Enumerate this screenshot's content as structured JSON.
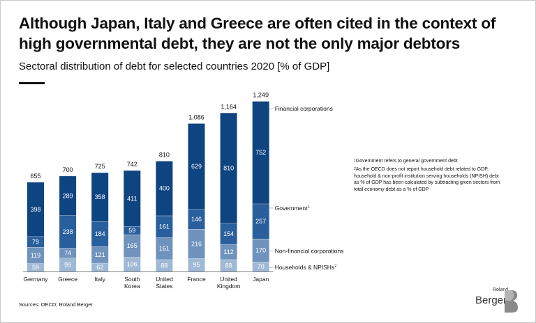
{
  "title": "Although Japan, Italy and Greece are often cited in the context of high governmental debt, they are not the only major debtors",
  "subtitle": "Sectoral distribution of debt for selected countries 2020 [% of GDP]",
  "footnotes": {
    "note1": "Government refers to general government debt",
    "note2": "As the OECD does not report household debt related to GDP, household & non-profit institution serving households (NPISH) debt as % of GDP has been calculated by subtracting given sectors from total economy debt as a % of GDP",
    "mark1": "1",
    "mark2": "2"
  },
  "source": "Sources: OECD; Roland Berger",
  "logo": {
    "line1": "Roland",
    "line2": "Berger"
  },
  "chart_data": {
    "type": "bar",
    "stacked": true,
    "unit": "% of GDP",
    "categories": [
      "Germany",
      "Greece",
      "Italy",
      "South\nKorea",
      "United\nStates",
      "France",
      "United\nKingdom",
      "Japan"
    ],
    "totals": [
      "655",
      "700",
      "725",
      "742",
      "810",
      "1,086",
      "1,164",
      "1,249"
    ],
    "series": [
      {
        "name": "Households & NPISHs",
        "mark": "2",
        "color": "#9fb9d5",
        "values": [
          59,
          99,
          62,
          106,
          88,
          95,
          88,
          70
        ]
      },
      {
        "name": "Non-financial corporations",
        "mark": "",
        "color": "#6f93bd",
        "values": [
          119,
          74,
          121,
          165,
          161,
          216,
          112,
          170
        ]
      },
      {
        "name": "Government",
        "mark": "1",
        "color": "#2a5f9d",
        "values": [
          79,
          238,
          184,
          59,
          161,
          146,
          154,
          257
        ]
      },
      {
        "name": "Financial corporations",
        "mark": "",
        "color": "#0e4480",
        "values": [
          398,
          289,
          358,
          411,
          400,
          629,
          810,
          752
        ]
      }
    ],
    "legend_placement": "right, beside the Japan bar",
    "grid": false
  }
}
